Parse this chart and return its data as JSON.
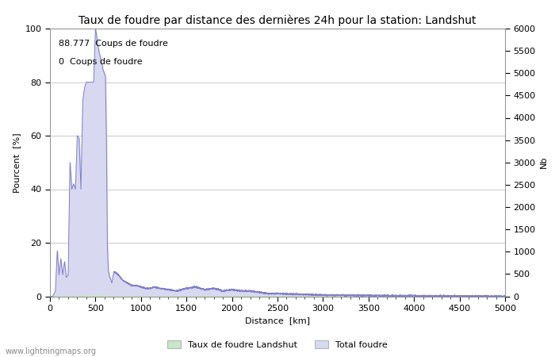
{
  "title": "Taux de foudre par distance des dernières 24h pour la station: Landshut",
  "xlabel": "Distance  [km]",
  "ylabel_left": "Pourcent  [%]",
  "ylabel_right": "Nb",
  "annotation1": "88.777  Coups de foudre",
  "annotation2": "0  Coups de foudre",
  "legend1": "Taux de foudre Landshut",
  "legend2": "Total foudre",
  "watermark": "www.lightningmaps.org",
  "xlim": [
    0,
    5000
  ],
  "ylim_left": [
    0,
    100
  ],
  "ylim_right": [
    0,
    6000
  ],
  "yticks_left": [
    0,
    20,
    40,
    60,
    80,
    100
  ],
  "yticks_right": [
    0,
    500,
    1000,
    1500,
    2000,
    2500,
    3000,
    3500,
    4000,
    4500,
    5000,
    5500,
    6000
  ],
  "xticks": [
    0,
    500,
    1000,
    1500,
    2000,
    2500,
    3000,
    3500,
    4000,
    4500,
    5000
  ],
  "fill_color_green": "#c8e6c8",
  "fill_color_blue": "#d8d8f0",
  "line_color": "#8080c8",
  "background_color": "#ffffff",
  "grid_color": "#cccccc",
  "title_fontsize": 10,
  "label_fontsize": 8,
  "tick_fontsize": 8,
  "annot_fontsize": 8
}
